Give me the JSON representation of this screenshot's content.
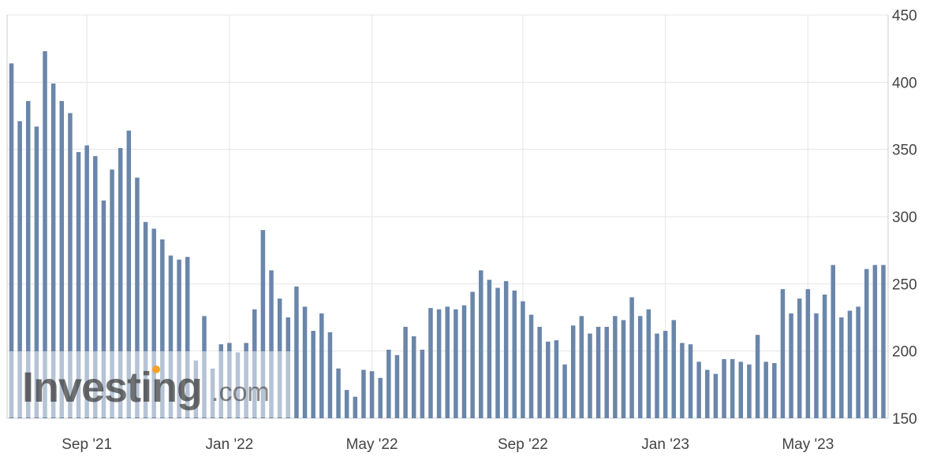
{
  "chart_data": {
    "type": "bar",
    "title": "",
    "xlabel": "",
    "ylabel": "",
    "ylim": [
      150,
      450
    ],
    "y_ticks": [
      150,
      200,
      250,
      300,
      350,
      400,
      450
    ],
    "y_axis_side": "right",
    "grid": true,
    "legend": "none",
    "x_ticks": [
      {
        "label": "Sep '21",
        "index": 9
      },
      {
        "label": "Jan '22",
        "index": 26
      },
      {
        "label": "May '22",
        "index": 43
      },
      {
        "label": "Sep '22",
        "index": 61
      },
      {
        "label": "Jan '23",
        "index": 78
      },
      {
        "label": "May '23",
        "index": 95
      }
    ],
    "series": [
      {
        "values": [
          414,
          371,
          386,
          367,
          423,
          399,
          386,
          377,
          348,
          353,
          345,
          312,
          335,
          351,
          364,
          329,
          296,
          291,
          283,
          271,
          268,
          270,
          193,
          226,
          187,
          205,
          206,
          199,
          206,
          231,
          290,
          260,
          239,
          225,
          248,
          233,
          215,
          228,
          214,
          187,
          171,
          166,
          186,
          185,
          180,
          201,
          197,
          218,
          211,
          201,
          232,
          231,
          233,
          231,
          234,
          244,
          260,
          253,
          247,
          252,
          245,
          237,
          227,
          218,
          207,
          208,
          190,
          219,
          226,
          213,
          218,
          218,
          226,
          223,
          240,
          226,
          231,
          213,
          215,
          223,
          206,
          205,
          192,
          186,
          183,
          194,
          194,
          192,
          190,
          212,
          192,
          191,
          246,
          228,
          239,
          246,
          228,
          242,
          264,
          225,
          230,
          233,
          261,
          264,
          264
        ]
      }
    ],
    "colors": {
      "bar": "#6a86aa",
      "grid": "#e5e5e5",
      "axis": "#cccccc",
      "text": "#444444"
    }
  },
  "watermark": {
    "brand": "Investing",
    "suffix": ".com",
    "dot_color": "#f3a32b"
  }
}
